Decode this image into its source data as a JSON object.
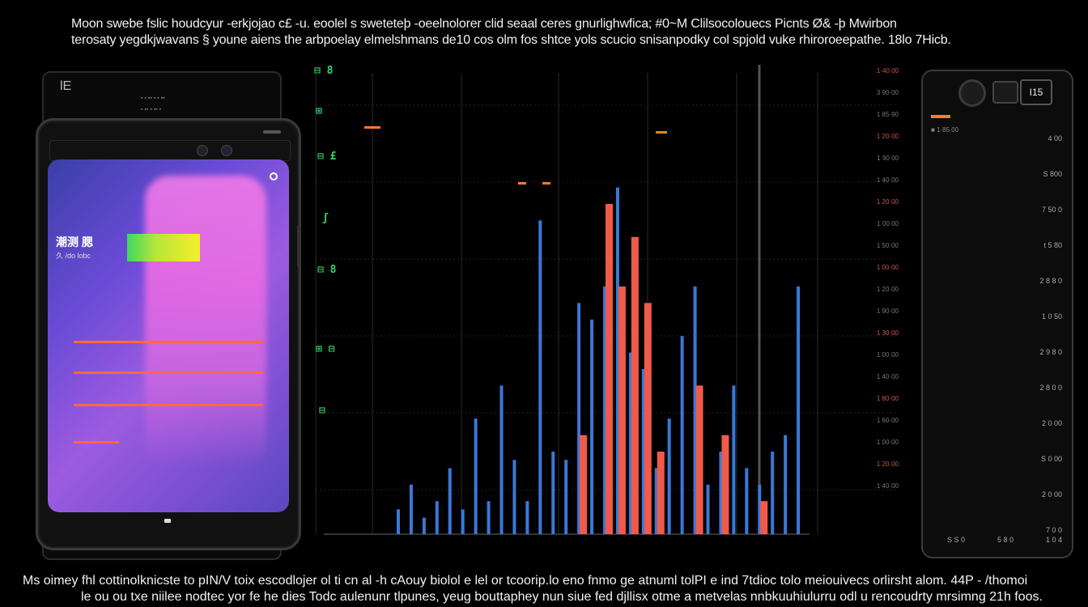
{
  "caption": {
    "top_line1": "Moon swebe fslic houdcyur -erkjojao c£ -u. eoolel s sweteteþ -oeelnolorer clid seaal ceres gnurlighwfica; #0~M Clilsocolouecs Picnts Ø& -þ Mwirbon",
    "top_line2": "terosaty yegdkjwavans § youne aiens the arbpoelay elmelshmans de10 cos olm fos shtce yols scucio snisanpodky col spjold vuke rhiroroeepathe. 18lo 7Hicb.",
    "bottom_line1": "Ms oimey fhl cottinolknicste to pIN/V toix escodlojer ol ti cn al -h cAouy biolol e lel or tcoorip.lo eno fnmo ge atnuml tolPI e ind 7tdioc tolo meiouivecs orlirsht alom. 44P - /thomoi",
    "bottom_line2": "le ou ou txe niilee nodtec yor fe he dies Todc aulenunr tlpunes, yeug bouttaphey nun siue fed djllisx otme a metvelas nnbkuuhiulurru odl u rencoudrty mrsimng 21h foos."
  },
  "tablet": {
    "corner_label": "lE"
  },
  "phone": {
    "app_title": "潮测 腮",
    "app_subtitle": "久 /do lobc"
  },
  "chart_data": {
    "type": "bar",
    "series": [
      {
        "name": "",
        "color": "#3a78d8",
        "values": [
          3,
          6,
          2,
          4,
          8,
          3,
          14,
          4,
          18,
          9,
          4,
          38,
          10,
          9,
          28,
          26,
          30,
          42,
          22,
          20,
          8,
          14,
          24,
          30,
          6,
          10,
          18,
          8,
          6,
          10,
          12,
          30
        ]
      },
      {
        "name": "",
        "color": "#f05a4a",
        "values": [
          0,
          0,
          0,
          0,
          0,
          0,
          0,
          0,
          0,
          0,
          0,
          0,
          0,
          0,
          12,
          0,
          40,
          30,
          36,
          28,
          10,
          0,
          0,
          18,
          0,
          12,
          0,
          0,
          4,
          0,
          0,
          0
        ]
      }
    ],
    "right_ticks": [
      "1·40 00",
      "3 90·00",
      "1 85·90",
      "1 20·00",
      "1 90 00",
      "1 40·00",
      "1 20·00",
      "1 00 00",
      "1 50·00",
      "1 00·00",
      "1 20·00",
      "1 90·00",
      "1 30·00",
      "1 00·00",
      "1 40·00",
      "1 80·00",
      "1 60·00",
      "1 00·00",
      "1 20·00",
      "1 40·00"
    ]
  },
  "rdevice": {
    "label": "I15",
    "left_label": "■ 1·85 00",
    "values": [
      "4 00",
      "S 800",
      "7 50 0",
      "t 5 80",
      "2 8 8 0",
      "1 0 50",
      "2 9 8 0",
      "2 8 0 0",
      "2 0 00",
      "S 0 00",
      "2 0 00",
      "7 0 0"
    ],
    "bottom_labels": [
      "S S 0",
      "5 8 0",
      "1 0 4"
    ]
  },
  "code_marks": [
    "⊟ 8",
    "⊞",
    "⊟ £",
    "ʃ",
    "⊟ 8",
    "⊞ ⊟",
    "⊟"
  ]
}
